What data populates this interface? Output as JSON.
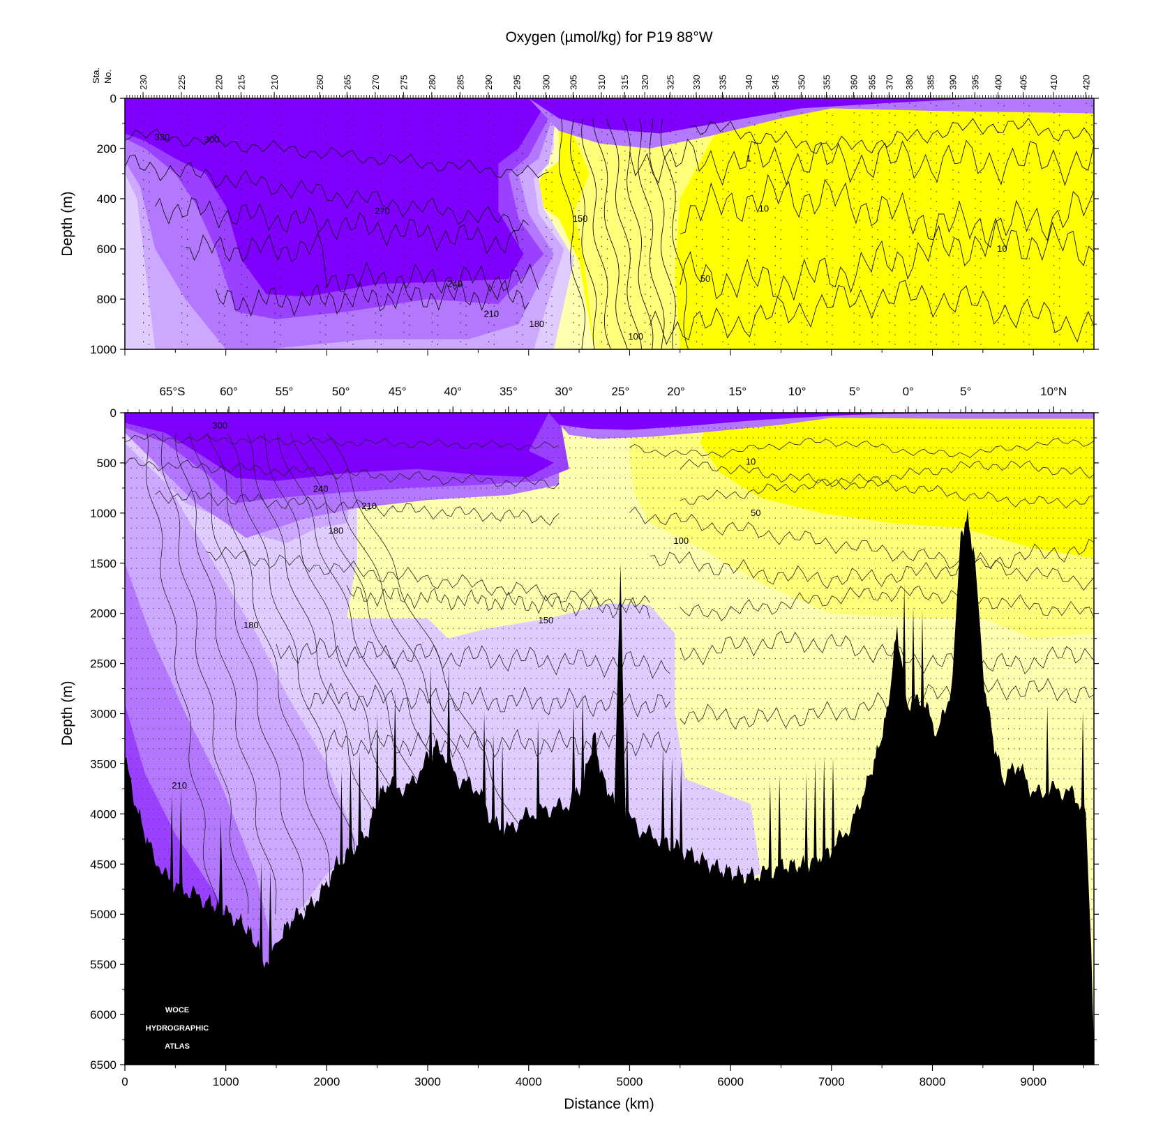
{
  "chart_data": [
    {
      "type": "heatmap",
      "subtype": "filled-contour section",
      "title": "Oxygen (µmol/kg) for P19 88°W",
      "ylabel": "Depth (m)",
      "ylim": [
        1000,
        0
      ],
      "xlim": [
        0,
        9600
      ],
      "y_ticks": [
        "0",
        "200",
        "400",
        "600",
        "800",
        "1000"
      ],
      "station_axis_label": [
        "Sta.",
        "No."
      ],
      "station_labels": [
        {
          "label": "230",
          "km": 180
        },
        {
          "label": "225",
          "km": 560
        },
        {
          "label": "220",
          "km": 930
        },
        {
          "label": "215",
          "km": 1150
        },
        {
          "label": "210",
          "km": 1480
        },
        {
          "label": "260",
          "km": 1930
        },
        {
          "label": "265",
          "km": 2200
        },
        {
          "label": "270",
          "km": 2480
        },
        {
          "label": "275",
          "km": 2760
        },
        {
          "label": "280",
          "km": 3040
        },
        {
          "label": "285",
          "km": 3320
        },
        {
          "label": "290",
          "km": 3600
        },
        {
          "label": "295",
          "km": 3880
        },
        {
          "label": "300",
          "km": 4170
        },
        {
          "label": "305",
          "km": 4440
        },
        {
          "label": "310",
          "km": 4720
        },
        {
          "label": "315",
          "km": 4950
        },
        {
          "label": "320",
          "km": 5150
        },
        {
          "label": "325",
          "km": 5400
        },
        {
          "label": "330",
          "km": 5660
        },
        {
          "label": "335",
          "km": 5920
        },
        {
          "label": "340",
          "km": 6180
        },
        {
          "label": "345",
          "km": 6440
        },
        {
          "label": "350",
          "km": 6700
        },
        {
          "label": "355",
          "km": 6950
        },
        {
          "label": "360",
          "km": 7220
        },
        {
          "label": "365",
          "km": 7400
        },
        {
          "label": "370",
          "km": 7570
        },
        {
          "label": "380",
          "km": 7770
        },
        {
          "label": "385",
          "km": 7980
        },
        {
          "label": "390",
          "km": 8200
        },
        {
          "label": "395",
          "km": 8420
        },
        {
          "label": "400",
          "km": 8650
        },
        {
          "label": "405",
          "km": 8900
        },
        {
          "label": "410",
          "km": 9200
        },
        {
          "label": "420",
          "km": 9520
        }
      ],
      "contour_labels": [
        {
          "text": "330",
          "km": 370,
          "depth": 155
        },
        {
          "text": "300",
          "km": 860,
          "depth": 165
        },
        {
          "text": "270",
          "km": 2550,
          "depth": 450
        },
        {
          "text": "240",
          "km": 3270,
          "depth": 740
        },
        {
          "text": "210",
          "km": 3630,
          "depth": 860
        },
        {
          "text": "180",
          "km": 4080,
          "depth": 900
        },
        {
          "text": "150",
          "km": 4510,
          "depth": 480
        },
        {
          "text": "100",
          "km": 5060,
          "depth": 950
        },
        {
          "text": "50",
          "km": 5750,
          "depth": 720
        },
        {
          "text": "10",
          "km": 6330,
          "depth": 440
        },
        {
          "text": "10",
          "km": 8690,
          "depth": 600
        },
        {
          "text": "1",
          "km": 6180,
          "depth": 240
        }
      ]
    },
    {
      "type": "heatmap",
      "subtype": "filled-contour section with bathymetry",
      "xlabel": "Distance (km)",
      "ylabel": "Depth (m)",
      "xlim": [
        0,
        9600
      ],
      "ylim": [
        6500,
        0
      ],
      "x_ticks": [
        "0",
        "1000",
        "2000",
        "3000",
        "4000",
        "5000",
        "6000",
        "7000",
        "8000",
        "9000"
      ],
      "y_ticks": [
        "0",
        "500",
        "1000",
        "1500",
        "2000",
        "2500",
        "3000",
        "3500",
        "4000",
        "4500",
        "5000",
        "5500",
        "6000",
        "6500"
      ],
      "latitude_labels": [
        {
          "label": "65°S",
          "km": 470
        },
        {
          "label": "60°",
          "km": 1030
        },
        {
          "label": "55°",
          "km": 1580
        },
        {
          "label": "50°",
          "km": 2140
        },
        {
          "label": "45°",
          "km": 2700
        },
        {
          "label": "40°",
          "km": 3250
        },
        {
          "label": "35°",
          "km": 3800
        },
        {
          "label": "30°",
          "km": 4350
        },
        {
          "label": "25°",
          "km": 4910
        },
        {
          "label": "20°",
          "km": 5460
        },
        {
          "label": "15°",
          "km": 6070
        },
        {
          "label": "10°",
          "km": 6660
        },
        {
          "label": "5°",
          "km": 7230
        },
        {
          "label": "0°",
          "km": 7760
        },
        {
          "label": "5°",
          "km": 8330
        },
        {
          "label": "10°N",
          "km": 9200
        }
      ],
      "contour_levels": [
        1,
        10,
        50,
        100,
        150,
        180,
        210,
        240,
        270,
        300,
        330
      ],
      "colors": {
        "gt_270": "#7f00ff",
        "240_270": "#9a40ff",
        "210_240": "#b478ff",
        "180_210": "#cda8ff",
        "150_180": "#e0ccff",
        "100_150": "#ffffb0",
        "50_100": "#ffff7a",
        "lt_50": "#ffff00",
        "bathymetry": "#000000"
      },
      "bathymetry_depth": [
        [
          0,
          3450
        ],
        [
          120,
          3950
        ],
        [
          250,
          4350
        ],
        [
          420,
          4650
        ],
        [
          600,
          4760
        ],
        [
          800,
          4860
        ],
        [
          930,
          4930
        ],
        [
          950,
          4100
        ],
        [
          970,
          4960
        ],
        [
          1150,
          5080
        ],
        [
          1250,
          5200
        ],
        [
          1350,
          5400
        ],
        [
          1440,
          5520
        ],
        [
          1520,
          5250
        ],
        [
          1650,
          5050
        ],
        [
          1800,
          4950
        ],
        [
          1950,
          4780
        ],
        [
          2100,
          4500
        ],
        [
          2250,
          4350
        ],
        [
          2400,
          4200
        ],
        [
          2500,
          3850
        ],
        [
          2600,
          3700
        ],
        [
          2800,
          3750
        ],
        [
          3000,
          3450
        ],
        [
          3100,
          3300
        ],
        [
          3300,
          3650
        ],
        [
          3500,
          3750
        ],
        [
          3650,
          4100
        ],
        [
          3800,
          4150
        ],
        [
          4000,
          4000
        ],
        [
          4200,
          3950
        ],
        [
          4400,
          3900
        ],
        [
          4550,
          3650
        ],
        [
          4650,
          3200
        ],
        [
          4720,
          3600
        ],
        [
          4850,
          3900
        ],
        [
          4910,
          1450
        ],
        [
          4960,
          4000
        ],
        [
          5100,
          4150
        ],
        [
          5300,
          4250
        ],
        [
          5600,
          4400
        ],
        [
          5900,
          4550
        ],
        [
          6150,
          4620
        ],
        [
          6300,
          4600
        ],
        [
          6500,
          4520
        ],
        [
          6750,
          4500
        ],
        [
          7000,
          4350
        ],
        [
          7200,
          4100
        ],
        [
          7350,
          3700
        ],
        [
          7450,
          3400
        ],
        [
          7550,
          3000
        ],
        [
          7650,
          2150
        ],
        [
          7750,
          2900
        ],
        [
          7900,
          2850
        ],
        [
          8050,
          3200
        ],
        [
          8200,
          2700
        ],
        [
          8280,
          1200
        ],
        [
          8350,
          1050
        ],
        [
          8420,
          1450
        ],
        [
          8500,
          2600
        ],
        [
          8600,
          3250
        ],
        [
          8700,
          3650
        ],
        [
          8850,
          3500
        ],
        [
          9000,
          3800
        ],
        [
          9200,
          3750
        ],
        [
          9400,
          3800
        ],
        [
          9520,
          4000
        ],
        [
          9560,
          5000
        ],
        [
          9600,
          6300
        ]
      ],
      "contour_labels": [
        {
          "text": "300",
          "km": 940,
          "depth": 130
        },
        {
          "text": "240",
          "km": 1940,
          "depth": 760
        },
        {
          "text": "210",
          "km": 2420,
          "depth": 930
        },
        {
          "text": "180",
          "km": 2090,
          "depth": 1180
        },
        {
          "text": "180",
          "km": 1250,
          "depth": 2120
        },
        {
          "text": "210",
          "km": 540,
          "depth": 3720
        },
        {
          "text": "150",
          "km": 4170,
          "depth": 2070
        },
        {
          "text": "100",
          "km": 5510,
          "depth": 1280
        },
        {
          "text": "50",
          "km": 6250,
          "depth": 1000
        },
        {
          "text": "10",
          "km": 6200,
          "depth": 490
        }
      ],
      "watermark": [
        "WOCE",
        "HYDROGRAPHIC",
        "ATLAS"
      ]
    }
  ]
}
